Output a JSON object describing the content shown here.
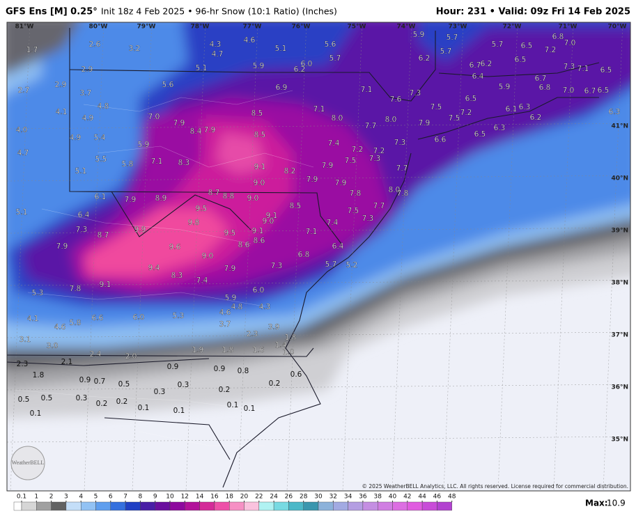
{
  "header": {
    "model": "GFS Ens [M] 0.25°",
    "info": "Init 18z 4 Feb 2025 • 96-hr Snow (10:1 Ratio) (Inches)",
    "valid": "Hour: 231 • Valid: 09z Fri 14 Feb 2025"
  },
  "map": {
    "lon_labels": [
      "81°W",
      "80°W",
      "79°W",
      "78°W",
      "77°W",
      "76°W",
      "75°W",
      "74°W",
      "73°W",
      "72°W",
      "71°W",
      "70°W"
    ],
    "lat_labels": [
      "41°N",
      "40°N",
      "39°N",
      "38°N",
      "37°N",
      "36°N",
      "35°N"
    ],
    "values": [
      "1.7",
      "2.6",
      "3.2",
      "4.3",
      "4.7",
      "4.6",
      "5.1",
      "5.6",
      "5.7",
      "5.9",
      "5.7",
      "5.7",
      "6.8",
      "7.0",
      "6.5",
      "7.2",
      "5.7",
      "6.2",
      "6.5",
      "6.7",
      "6.2",
      "7.3",
      "7.1",
      "6.5",
      "2.9",
      "5.1",
      "5.9",
      "6.0",
      "6.2",
      "2.9",
      "2.7",
      "3.7",
      "5.6",
      "6.9",
      "7.1",
      "7.3",
      "6.4",
      "5.9",
      "6.7",
      "6.8",
      "7.0",
      "6.7",
      "6.5",
      "6.5",
      "4.8",
      "4.1",
      "4.9",
      "8.5",
      "7.1",
      "7.6",
      "7.5",
      "7.2",
      "6.1",
      "6.3",
      "6.3",
      "6.2",
      "7.0",
      "7.9",
      "8.4",
      "7.9",
      "8.0",
      "8.0",
      "7.7",
      "7.9",
      "7.5",
      "6.3",
      "6.5",
      "4.0",
      "5.4",
      "4.9",
      "8.5",
      "7.4",
      "7.3",
      "6.6",
      "5.9",
      "4.7",
      "5.5",
      "5.8",
      "7.1",
      "8.3",
      "7.2",
      "7.2",
      "7.3",
      "7.5",
      "7.7",
      "5.1",
      "9.1",
      "8.2",
      "7.9",
      "7.9",
      "9.0",
      "7.9",
      "6.1",
      "7.9",
      "8.9",
      "8.7",
      "8.8",
      "9.0",
      "8.0",
      "7.8",
      "7.8",
      "8.5",
      "7.7",
      "7.5",
      "5.1",
      "6.4",
      "9.5",
      "9.1",
      "9.0",
      "7.4",
      "7.3",
      "9.8",
      "7.3",
      "8.7",
      "9.9",
      "9.5",
      "9.1",
      "7.1",
      "8.6",
      "8.6",
      "7.9",
      "9.6",
      "9.0",
      "6.4",
      "6.8",
      "9.4",
      "7.9",
      "7.3",
      "5.7",
      "5.2",
      "8.3",
      "7.8",
      "9.1",
      "7.4",
      "6.0",
      "5.3",
      "5.9",
      "4.8",
      "4.3",
      "4.6",
      "4.1",
      "5.8",
      "6.6",
      "6.0",
      "5.3",
      "3.7",
      "4.6",
      "3.9",
      "2.3",
      "3.1",
      "1.8",
      "3.0",
      "1.4",
      "1.9",
      "1.8",
      "1.6",
      "1.0",
      "2.4",
      "2.0",
      "2.3",
      "2.1",
      "0.9",
      "0.9",
      "0.8",
      "0.6",
      "1.8",
      "0.9",
      "0.7",
      "0.5",
      "0.3",
      "0.2",
      "0.2",
      "0.3",
      "0.5",
      "0.5",
      "0.3",
      "0.2",
      "0.2",
      "0.1",
      "0.1",
      "0.1",
      "0.1",
      "0.1"
    ],
    "logo": "WeatherBELL",
    "copyright": "© 2025 WeatherBELL Analytics, LLC. All rights reserved. License required for commercial distribution."
  },
  "colorbar": {
    "ticks": [
      0.1,
      1,
      2,
      3,
      4,
      5,
      6,
      7,
      8,
      9,
      10,
      12,
      14,
      16,
      18,
      20,
      22,
      24,
      26,
      28,
      30,
      32,
      34,
      36,
      38,
      40,
      42,
      44,
      46,
      48
    ],
    "colors": [
      "#ffffff",
      "#d6d6d6",
      "#a0a0a0",
      "#626262",
      "#c4def8",
      "#92c2f4",
      "#5f9eee",
      "#3470de",
      "#2040c4",
      "#4a1ea6",
      "#6a0e9e",
      "#8e0a9e",
      "#b2129a",
      "#d42a98",
      "#ee50a8",
      "#f690c4",
      "#fac2de",
      "#b0f2f2",
      "#78dae2",
      "#4cb8c8",
      "#3a96ae",
      "#8cb2da",
      "#a2aae2",
      "#b49ee2",
      "#c48ee2",
      "#d07ee2",
      "#dc6ee2",
      "#e05ce0",
      "#c84cd8",
      "#b242d0"
    ]
  },
  "max": {
    "label": "Max:",
    "value": 10.9
  }
}
